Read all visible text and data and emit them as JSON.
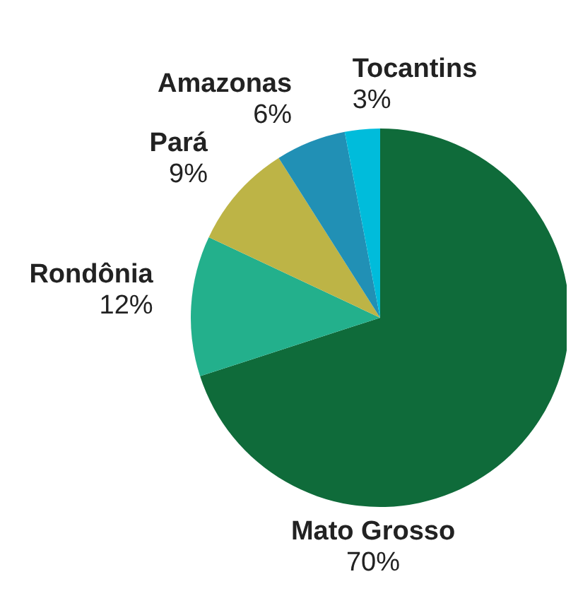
{
  "chart_data": {
    "type": "pie",
    "categories": [
      "Mato Grosso",
      "Rondônia",
      "Pará",
      "Amazonas",
      "Tocantins"
    ],
    "values": [
      70,
      12,
      9,
      6,
      3
    ],
    "value_labels": [
      "70%",
      "12%",
      "9%",
      "6%",
      "3%"
    ],
    "colors": [
      "#0f6b3a",
      "#23b08c",
      "#bdb446",
      "#2190b5",
      "#00bcdb"
    ],
    "legend": false
  }
}
